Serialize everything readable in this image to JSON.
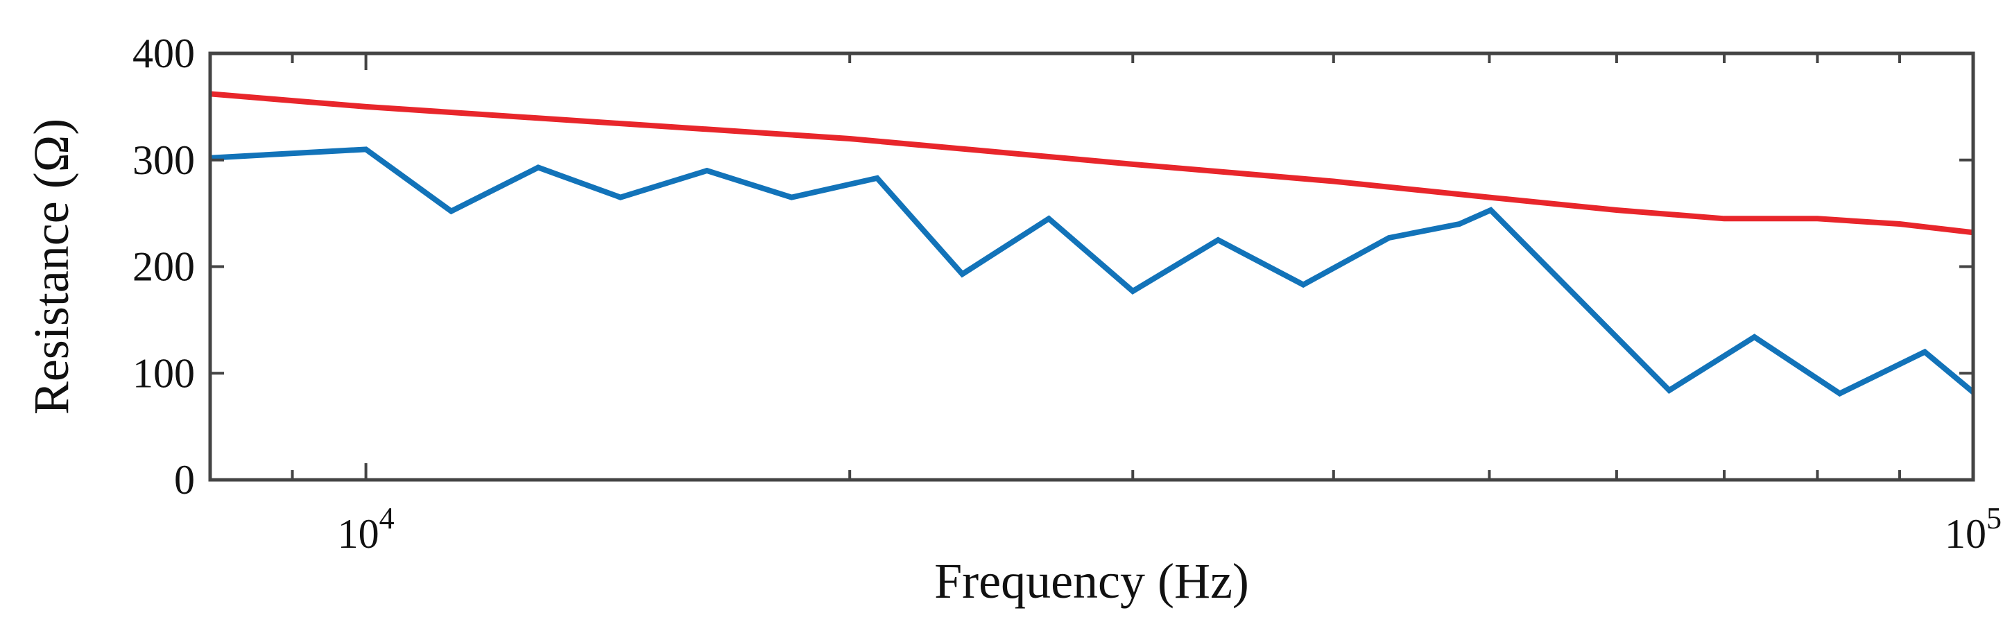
{
  "chart_data": {
    "type": "line",
    "xlabel": "Frequency (Hz)",
    "ylabel": "Resistance (Ω)",
    "xscale": "log",
    "xlim": [
      8000,
      100000
    ],
    "ylim": [
      0,
      400
    ],
    "yticks": [
      0,
      100,
      200,
      300,
      400
    ],
    "xticks": [
      {
        "value": 10000,
        "base": "10",
        "exp": "4"
      },
      {
        "value": 100000,
        "base": "10",
        "exp": "5"
      }
    ],
    "grid": false,
    "series": [
      {
        "color": "#e8262b",
        "x": [
          8000,
          10000,
          20000,
          30000,
          40000,
          50000,
          60000,
          70000,
          80000,
          90000,
          100000
        ],
        "y": [
          362,
          350,
          320,
          296,
          280,
          265,
          253,
          245,
          245,
          240,
          232
        ]
      },
      {
        "color": "#1273b9",
        "x": [
          8000,
          10000,
          11300,
          12800,
          14400,
          16300,
          18400,
          20800,
          23500,
          26600,
          30000,
          33900,
          38300,
          43300,
          47900,
          50100,
          64700,
          73100,
          82600,
          93300,
          105500
        ],
        "y": [
          302,
          310,
          252,
          293,
          265,
          290,
          265,
          283,
          193,
          245,
          177,
          225,
          183,
          227,
          240,
          253,
          84,
          134,
          81,
          120,
          53
        ]
      }
    ]
  }
}
